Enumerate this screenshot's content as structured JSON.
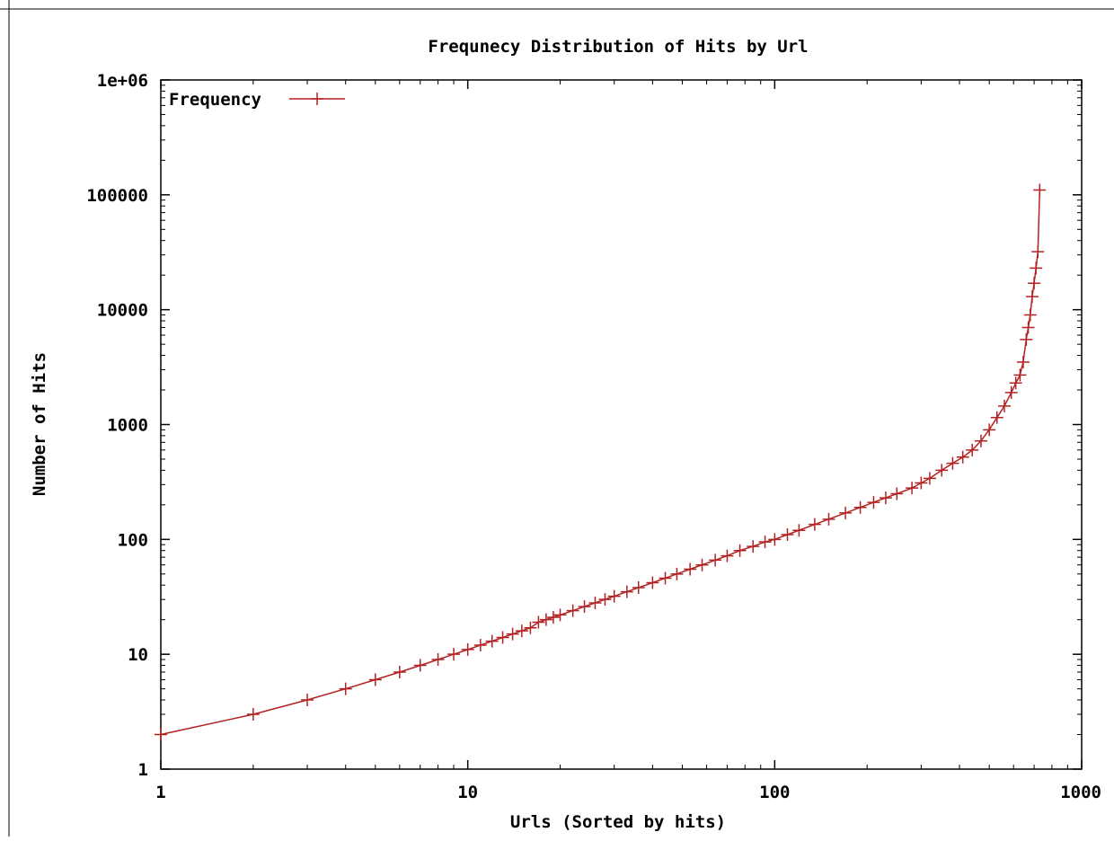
{
  "chart_data": {
    "type": "line",
    "title": "Frequnecy Distribution of Hits by Url",
    "xlabel": "Urls (Sorted by hits)",
    "ylabel": "Number of Hits",
    "x_scale": "log",
    "y_scale": "log",
    "xlim": [
      1,
      1000
    ],
    "ylim": [
      1,
      1000000
    ],
    "x_ticks": [
      {
        "value": 1,
        "label": "1"
      },
      {
        "value": 10,
        "label": "10"
      },
      {
        "value": 100,
        "label": "100"
      },
      {
        "value": 1000,
        "label": "1000"
      }
    ],
    "y_ticks": [
      {
        "value": 1,
        "label": "1"
      },
      {
        "value": 10,
        "label": "10"
      },
      {
        "value": 100,
        "label": "100"
      },
      {
        "value": 1000,
        "label": "1000"
      },
      {
        "value": 10000,
        "label": "10000"
      },
      {
        "value": 100000,
        "label": "100000"
      },
      {
        "value": 1000000,
        "label": "1e+06"
      }
    ],
    "grid": false,
    "legend_position": "top-left",
    "series": [
      {
        "name": "Frequency",
        "color": "#b22222",
        "marker": "plus",
        "x": [
          1,
          2,
          3,
          4,
          5,
          6,
          7,
          8,
          9,
          10,
          11,
          12,
          13,
          14,
          15,
          16,
          17,
          18,
          19,
          20,
          22,
          24,
          26,
          28,
          30,
          33,
          36,
          40,
          44,
          48,
          53,
          58,
          64,
          70,
          77,
          85,
          93,
          100,
          110,
          120,
          135,
          150,
          170,
          190,
          210,
          230,
          250,
          280,
          300,
          320,
          350,
          380,
          410,
          440,
          470,
          500,
          530,
          560,
          590,
          610,
          630,
          645,
          660,
          670,
          680,
          690,
          700,
          710,
          720,
          730
        ],
        "y": [
          2,
          3,
          4,
          5,
          6,
          7,
          8,
          9,
          10,
          11,
          12,
          13,
          14,
          15,
          16,
          17,
          19,
          20,
          21,
          22,
          24,
          26,
          28,
          30,
          32,
          35,
          38,
          42,
          46,
          50,
          55,
          60,
          66,
          72,
          80,
          87,
          95,
          100,
          110,
          120,
          135,
          150,
          170,
          190,
          210,
          230,
          250,
          280,
          310,
          340,
          400,
          460,
          520,
          600,
          720,
          900,
          1150,
          1450,
          1900,
          2300,
          2700,
          3500,
          5500,
          7000,
          9000,
          13000,
          17000,
          23000,
          32000,
          110000
        ]
      }
    ]
  }
}
